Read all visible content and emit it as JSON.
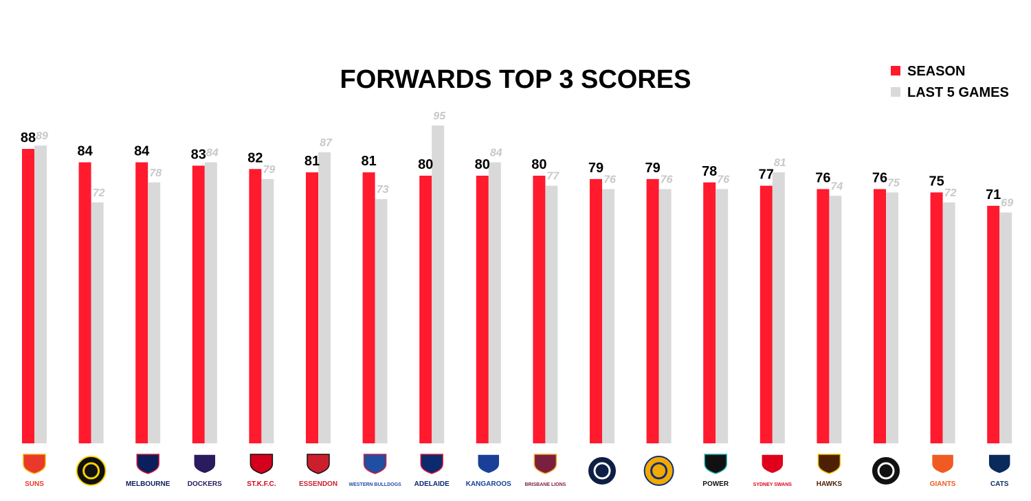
{
  "chart_data": {
    "type": "bar",
    "title": "FORWARDS TOP 3 SCORES",
    "legend": {
      "position": "top-right",
      "items": [
        {
          "name": "SEASON",
          "color": "#ff1a2e"
        },
        {
          "name": "LAST 5 GAMES",
          "color": "#d9d9d9"
        }
      ]
    },
    "categories": [
      "Gold Coast Suns",
      "Richmond",
      "Melbourne",
      "Fremantle",
      "St Kilda",
      "Essendon",
      "Western Bulldogs",
      "Adelaide",
      "North Melbourne",
      "Brisbane Lions",
      "Carlton",
      "West Coast",
      "Port Adelaide",
      "Sydney Swans",
      "Hawthorn",
      "Collingwood",
      "GWS Giants",
      "Geelong"
    ],
    "series": [
      {
        "name": "SEASON",
        "color": "#ff1a2e",
        "values": [
          88,
          84,
          84,
          83,
          82,
          81,
          81,
          80,
          80,
          80,
          79,
          79,
          78,
          77,
          76,
          76,
          75,
          71
        ]
      },
      {
        "name": "LAST 5 GAMES",
        "color": "#d9d9d9",
        "values": [
          89,
          72,
          78,
          84,
          79,
          87,
          73,
          95,
          84,
          77,
          76,
          76,
          76,
          81,
          74,
          75,
          72,
          69
        ]
      }
    ],
    "grid": false,
    "axes_visible": false
  },
  "logos": [
    {
      "text": "SUNS",
      "color": "#e8392a",
      "accent": "#f4b400",
      "icon": "sun-icon"
    },
    {
      "text": "",
      "color": "#111111",
      "accent": "#f9d200",
      "icon": "tiger-icon"
    },
    {
      "text": "MELBOURNE",
      "color": "#0b1f5c",
      "accent": "#d21f3c",
      "icon": "demon-icon"
    },
    {
      "text": "DOCKERS",
      "color": "#2a1a5e",
      "accent": "#ffffff",
      "icon": "anchor-icon"
    },
    {
      "text": "ST.K.F.C.",
      "color": "#d4001c",
      "accent": "#111111",
      "icon": "cross-shield-icon"
    },
    {
      "text": "ESSENDON",
      "color": "#cc1f2e",
      "accent": "#111111",
      "icon": "bomber-icon"
    },
    {
      "text": "WESTERN BULLDOGS",
      "color": "#1f4ea3",
      "accent": "#d21f3c",
      "icon": "bulldog-icon"
    },
    {
      "text": "ADELAIDE",
      "color": "#0c2a6e",
      "accent": "#e21937",
      "icon": "crow-icon"
    },
    {
      "text": "KANGAROOS",
      "color": "#1a3f99",
      "accent": "#ffffff",
      "icon": "kangaroo-icon"
    },
    {
      "text": "BRISBANE LIONS",
      "color": "#7a1f3d",
      "accent": "#f5a623",
      "icon": "lion-icon"
    },
    {
      "text": "",
      "color": "#0e1e45",
      "accent": "#ffffff",
      "icon": "carlton-monogram-icon"
    },
    {
      "text": "",
      "color": "#f2a900",
      "accent": "#0f2d7a",
      "icon": "eagle-icon"
    },
    {
      "text": "POWER",
      "color": "#111111",
      "accent": "#1ab3b0",
      "icon": "power-shield-icon"
    },
    {
      "text": "SYDNEY SWANS",
      "color": "#e0001b",
      "accent": "#ffffff",
      "icon": "swan-icon"
    },
    {
      "text": "HAWKS",
      "color": "#4d2004",
      "accent": "#f3c300",
      "icon": "hawk-icon"
    },
    {
      "text": "",
      "color": "#111111",
      "accent": "#ffffff",
      "icon": "magpie-icon"
    },
    {
      "text": "GIANTS",
      "color": "#f15a22",
      "accent": "#ffffff",
      "icon": "giants-g-icon"
    },
    {
      "text": "CATS",
      "color": "#0a2a5c",
      "accent": "#ffffff",
      "icon": "cat-icon"
    }
  ]
}
